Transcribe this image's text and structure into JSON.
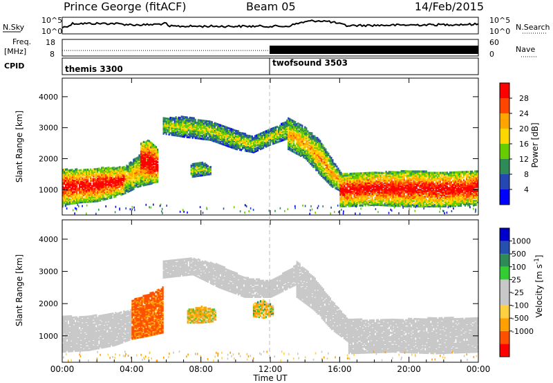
{
  "header": {
    "station": "Prince George (fitACF)",
    "beam": "Beam 05",
    "date": "14/Feb/2015"
  },
  "time_axis": {
    "label": "Time UT",
    "ticks": [
      "00:00",
      "04:00",
      "08:00",
      "12:00",
      "16:00",
      "20:00",
      "00:00"
    ],
    "range_hours": [
      0,
      24
    ]
  },
  "noise_panel": {
    "left_label": "N.Sky",
    "right_label": "N.Search",
    "left_ticks": [
      "10^5",
      "10^0"
    ],
    "right_ticks": [
      "10^5",
      "10^0"
    ]
  },
  "freq_panel": {
    "left_label_1": "Freq.",
    "left_label_2": "[MHz]",
    "right_label": "Nave",
    "left_ticks": [
      "18",
      "8"
    ],
    "right_ticks": [
      "60",
      "0"
    ]
  },
  "cpid_panel": {
    "label": "CPID",
    "programs": [
      {
        "name": "themis 3300",
        "start_hour": 0
      },
      {
        "name": "twofsound 3503",
        "start_hour": 12
      }
    ]
  },
  "colors": {
    "power": [
      "#0000ff",
      "#2547b4",
      "#2e8b57",
      "#66cd00",
      "#ffd700",
      "#ffa500",
      "#ff4500",
      "#ff0000"
    ],
    "velocity": [
      "#ff0000",
      "#ff5000",
      "#ffa000",
      "#ffd040",
      "#c8c8c8",
      "#c8c8c8",
      "#33cc33",
      "#2e8b57",
      "#2550b0",
      "#0000cc"
    ]
  },
  "chart_data": [
    {
      "type": "heatmap",
      "name": "power",
      "ylabel": "Slant Range [km]",
      "xlabel": "",
      "xlim": [
        0,
        24
      ],
      "ylim": [
        180,
        4600
      ],
      "y_ticks": [
        1000,
        2000,
        3000,
        4000
      ],
      "colorbar_label": "Power [dB]",
      "colorbar_ticks": [
        4,
        8,
        12,
        16,
        20,
        24,
        28
      ],
      "colorbar_range": [
        0,
        32
      ],
      "bands": [
        {
          "t": [
            0.0,
            1.0,
            2.0,
            3.0,
            3.6
          ],
          "low": [
            500,
            580,
            620,
            760,
            880
          ],
          "high": [
            1650,
            1650,
            1700,
            1700,
            1750
          ],
          "level": 26
        },
        {
          "t": [
            3.6,
            4.4,
            5.2
          ],
          "low": [
            880,
            1100,
            1200
          ],
          "high": [
            1750,
            2100,
            2500
          ],
          "level": 18
        },
        {
          "t": [
            4.5,
            5.0,
            5.5
          ],
          "low": [
            1300,
            1200,
            1250
          ],
          "high": [
            2500,
            2600,
            2300
          ],
          "level": 28
        },
        {
          "t": [
            5.8,
            7.0,
            8.5,
            10.0,
            11.0,
            12.0,
            13.0
          ],
          "low": [
            2800,
            2700,
            2600,
            2300,
            2200,
            2450,
            2650
          ],
          "high": [
            3300,
            3350,
            3200,
            2900,
            2700,
            2950,
            3250
          ],
          "level": 14
        },
        {
          "t": [
            7.4,
            8.0,
            8.6
          ],
          "low": [
            1400,
            1450,
            1500
          ],
          "high": [
            1800,
            1900,
            1700
          ],
          "level": 14
        },
        {
          "t": [
            13.0,
            14.0,
            14.8,
            15.5,
            16.2
          ],
          "low": [
            2300,
            2000,
            1500,
            1100,
            900
          ],
          "high": [
            3300,
            3000,
            2600,
            2000,
            1400
          ],
          "level": 18
        },
        {
          "t": [
            16.0,
            18.0,
            20.0,
            22.0,
            24.0
          ],
          "low": [
            450,
            500,
            450,
            450,
            500
          ],
          "high": [
            1500,
            1550,
            1600,
            1550,
            1600
          ],
          "level": 26
        }
      ]
    },
    {
      "type": "heatmap",
      "name": "velocity",
      "ylabel": "Slant Range [km]",
      "xlabel": "Time UT",
      "xlim": [
        0,
        24
      ],
      "ylim": [
        180,
        4600
      ],
      "y_ticks": [
        1000,
        2000,
        3000,
        4000
      ],
      "colorbar_label": "Velocity [m s^-1]",
      "colorbar_ticks": [
        "1000",
        "500",
        "100",
        "25",
        "-25",
        "-100",
        "-500",
        "-1000"
      ],
      "bands": [
        {
          "t": [
            0.0,
            1.5,
            3.0,
            4.0
          ],
          "low": [
            500,
            550,
            700,
            900
          ],
          "high": [
            1600,
            1600,
            1700,
            1800
          ],
          "vel": 0
        },
        {
          "t": [
            4.0,
            5.0,
            5.8
          ],
          "low": [
            900,
            1000,
            1100
          ],
          "high": [
            2100,
            2300,
            2500
          ],
          "vel": -600
        },
        {
          "t": [
            5.8,
            7.5,
            9.0,
            10.5,
            12.0,
            13.5
          ],
          "low": [
            2800,
            2900,
            2500,
            2200,
            2200,
            2600
          ],
          "high": [
            3300,
            3400,
            3200,
            2800,
            2700,
            3200
          ],
          "vel": 0
        },
        {
          "t": [
            7.2,
            8.0,
            8.8
          ],
          "low": [
            1400,
            1400,
            1450
          ],
          "high": [
            1800,
            1900,
            1800
          ],
          "vel": -150
        },
        {
          "t": [
            11.0,
            11.6,
            12.2
          ],
          "low": [
            1600,
            1550,
            1650
          ],
          "high": [
            2000,
            2100,
            1900
          ],
          "vel": -120
        },
        {
          "t": [
            13.5,
            14.5,
            15.5,
            16.5
          ],
          "low": [
            2200,
            1800,
            1200,
            800
          ],
          "high": [
            3300,
            2800,
            2100,
            1500
          ],
          "vel": 0
        },
        {
          "t": [
            16.5,
            19.0,
            21.5,
            24.0
          ],
          "low": [
            450,
            500,
            450,
            500
          ],
          "high": [
            1500,
            1500,
            1550,
            1550
          ],
          "vel": 0
        }
      ]
    }
  ]
}
